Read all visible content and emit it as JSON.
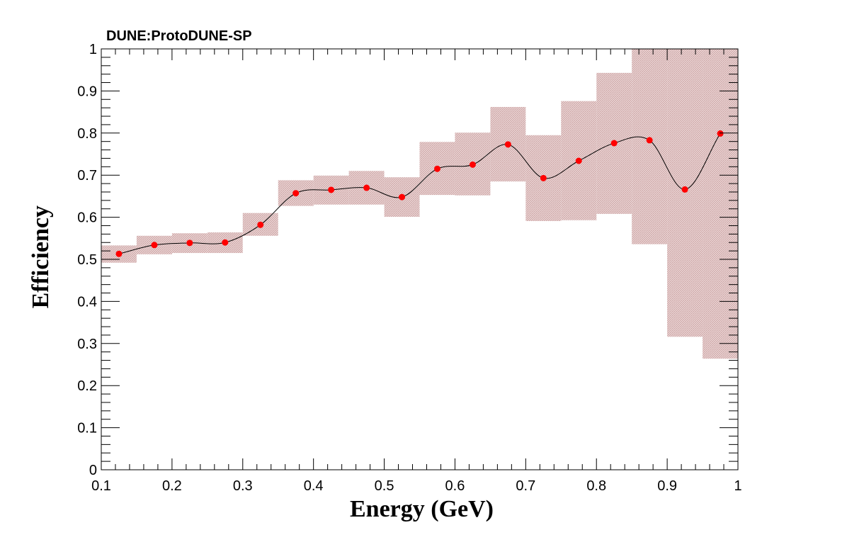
{
  "chart_data": {
    "type": "scatter",
    "title": "DUNE:ProtoDUNE-SP",
    "xlabel": "Energy (GeV)",
    "ylabel": "Efficiency",
    "xlim": [
      0.1,
      1.0
    ],
    "ylim": [
      0,
      1
    ],
    "grid": false,
    "x_ticks": [
      "0.1",
      "0.2",
      "0.3",
      "0.4",
      "0.5",
      "0.6",
      "0.7",
      "0.8",
      "0.9",
      "1"
    ],
    "y_ticks": [
      "0",
      "0.1",
      "0.2",
      "0.3",
      "0.4",
      "0.5",
      "0.6",
      "0.7",
      "0.8",
      "0.9",
      "1"
    ],
    "colors": {
      "points": "#ff0000",
      "band": "#d9b3b3",
      "curve": "#000000"
    },
    "x": [
      0.125,
      0.175,
      0.225,
      0.275,
      0.325,
      0.375,
      0.425,
      0.475,
      0.525,
      0.575,
      0.625,
      0.675,
      0.725,
      0.775,
      0.825,
      0.875,
      0.925,
      0.975
    ],
    "y": [
      0.513,
      0.534,
      0.539,
      0.54,
      0.582,
      0.657,
      0.665,
      0.67,
      0.648,
      0.715,
      0.725,
      0.773,
      0.693,
      0.734,
      0.776,
      0.783,
      0.666,
      0.799
    ],
    "bins": [
      {
        "x0": 0.1,
        "x1": 0.15,
        "lo": 0.492,
        "hi": 0.533
      },
      {
        "x0": 0.15,
        "x1": 0.2,
        "lo": 0.512,
        "hi": 0.556
      },
      {
        "x0": 0.2,
        "x1": 0.25,
        "lo": 0.515,
        "hi": 0.562
      },
      {
        "x0": 0.25,
        "x1": 0.3,
        "lo": 0.515,
        "hi": 0.564
      },
      {
        "x0": 0.3,
        "x1": 0.35,
        "lo": 0.556,
        "hi": 0.61
      },
      {
        "x0": 0.35,
        "x1": 0.4,
        "lo": 0.627,
        "hi": 0.688
      },
      {
        "x0": 0.4,
        "x1": 0.45,
        "lo": 0.63,
        "hi": 0.699
      },
      {
        "x0": 0.45,
        "x1": 0.5,
        "lo": 0.63,
        "hi": 0.71
      },
      {
        "x0": 0.5,
        "x1": 0.55,
        "lo": 0.601,
        "hi": 0.695
      },
      {
        "x0": 0.55,
        "x1": 0.6,
        "lo": 0.653,
        "hi": 0.779
      },
      {
        "x0": 0.6,
        "x1": 0.65,
        "lo": 0.652,
        "hi": 0.801
      },
      {
        "x0": 0.65,
        "x1": 0.7,
        "lo": 0.685,
        "hi": 0.862
      },
      {
        "x0": 0.7,
        "x1": 0.75,
        "lo": 0.591,
        "hi": 0.795
      },
      {
        "x0": 0.75,
        "x1": 0.8,
        "lo": 0.593,
        "hi": 0.876
      },
      {
        "x0": 0.8,
        "x1": 0.85,
        "lo": 0.608,
        "hi": 0.943
      },
      {
        "x0": 0.85,
        "x1": 0.9,
        "lo": 0.536,
        "hi": 1.0
      },
      {
        "x0": 0.9,
        "x1": 0.95,
        "lo": 0.316,
        "hi": 1.0
      },
      {
        "x0": 0.95,
        "x1": 1.0,
        "lo": 0.264,
        "hi": 1.0
      }
    ]
  }
}
